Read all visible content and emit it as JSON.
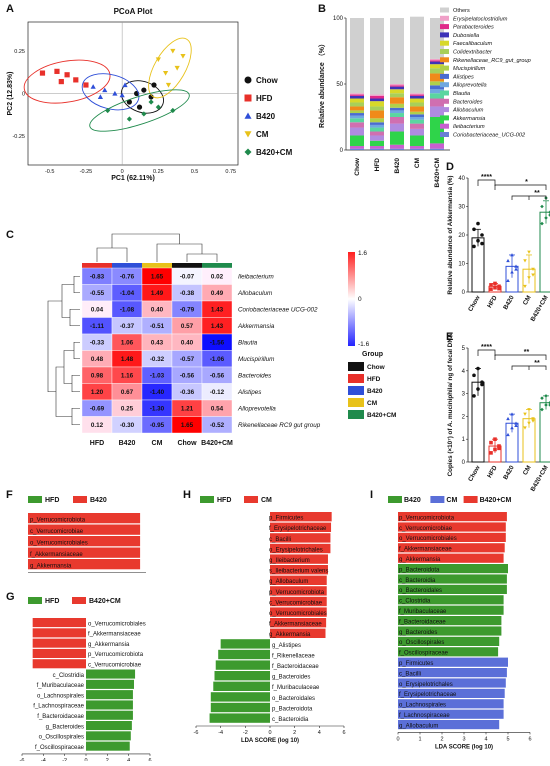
{
  "panels": {
    "A": "A",
    "B": "B",
    "C": "C",
    "D": "D",
    "E": "E",
    "F": "F",
    "G": "G",
    "H": "H",
    "I": "I"
  },
  "colors": {
    "chow": "#111111",
    "hfd": "#e8302a",
    "b420": "#2f4fd8",
    "cm": "#e8c21a",
    "b420cm": "#1f8a4c",
    "lda_green": "#3d9a2e",
    "lda_red": "#e8392e",
    "lda_blue": "#5b6fd8"
  },
  "chart_data": [
    {
      "id": "A",
      "type": "scatter",
      "title": "PCoA Plot",
      "xlabel": "PC1 (62.11%)",
      "ylabel": "PC2 (12.83%)",
      "xticks": [
        "-0.5",
        "-0.25",
        "0",
        "0.25",
        "0.5",
        "0.75"
      ],
      "yticks": [
        "0.25",
        "0",
        "-0.25"
      ],
      "xlim": [
        -0.65,
        0.8
      ],
      "ylim": [
        -0.42,
        0.42
      ],
      "legend": [
        "Chow",
        "HFD",
        "B420",
        "CM",
        "B420+CM"
      ],
      "series": [
        {
          "name": "Chow",
          "points": [
            [
              0.05,
              -0.05
            ],
            [
              0.1,
              0.0
            ],
            [
              0.15,
              0.02
            ],
            [
              0.22,
              0.05
            ],
            [
              0.12,
              -0.08
            ],
            [
              0.2,
              -0.02
            ]
          ]
        },
        {
          "name": "HFD",
          "points": [
            [
              -0.55,
              0.12
            ],
            [
              -0.45,
              0.13
            ],
            [
              -0.38,
              0.11
            ],
            [
              -0.32,
              0.08
            ],
            [
              -0.25,
              0.05
            ],
            [
              -0.42,
              0.07
            ]
          ]
        },
        {
          "name": "B420",
          "points": [
            [
              -0.2,
              0.04
            ],
            [
              -0.12,
              0.02
            ],
            [
              -0.05,
              0.0
            ],
            [
              0.02,
              0.05
            ],
            [
              -0.15,
              -0.02
            ],
            [
              0.0,
              -0.01
            ]
          ]
        },
        {
          "name": "CM",
          "points": [
            [
              0.25,
              0.2
            ],
            [
              0.3,
              0.12
            ],
            [
              0.35,
              0.25
            ],
            [
              0.38,
              0.15
            ],
            [
              0.42,
              0.22
            ],
            [
              0.32,
              0.05
            ]
          ]
        },
        {
          "name": "B420+CM",
          "points": [
            [
              -0.1,
              -0.1
            ],
            [
              0.05,
              -0.15
            ],
            [
              0.15,
              -0.12
            ],
            [
              0.25,
              -0.08
            ],
            [
              0.35,
              -0.1
            ],
            [
              0.2,
              -0.05
            ]
          ]
        }
      ]
    },
    {
      "id": "B",
      "type": "bar",
      "stacked": true,
      "ylabel": "Relative abundance （%）",
      "yticks": [
        "100",
        "50",
        "0"
      ],
      "ylim": [
        0,
        100
      ],
      "categories": [
        "Chow",
        "HFD",
        "B420",
        "CM",
        "B420+CM"
      ],
      "series": [
        {
          "name": "Coriobacteriaceae_UCG-002",
          "color": "#6a7fd6",
          "values": [
            1,
            1,
            1,
            1,
            1
          ]
        },
        {
          "name": "Ileibacterium",
          "color": "#c95fd0",
          "values": [
            2,
            2,
            3,
            2,
            4
          ]
        },
        {
          "name": "Akkermansia",
          "color": "#2fd44a",
          "values": [
            8,
            4,
            10,
            8,
            20
          ]
        },
        {
          "name": "Allobaculum",
          "color": "#b08be0",
          "values": [
            6,
            4,
            6,
            5,
            8
          ]
        },
        {
          "name": "Bacteroides",
          "color": "#d06fb0",
          "values": [
            4,
            3,
            5,
            4,
            6
          ]
        },
        {
          "name": "Blautia",
          "color": "#5ad6a0",
          "values": [
            3,
            3,
            3,
            3,
            4
          ]
        },
        {
          "name": "Alloprevotella",
          "color": "#6fa8e0",
          "values": [
            2,
            2,
            2,
            2,
            3
          ]
        },
        {
          "name": "Alistipes",
          "color": "#4a6cd0",
          "values": [
            2,
            2,
            2,
            2,
            3
          ]
        },
        {
          "name": "Mucispirillum",
          "color": "#b0d04a",
          "values": [
            2,
            3,
            3,
            2,
            3
          ]
        },
        {
          "name": "Rikenellaceae_RC9_gut_group",
          "color": "#f08a1a",
          "values": [
            3,
            6,
            5,
            4,
            6
          ]
        },
        {
          "name": "Colidextribacter",
          "color": "#a8cf5a",
          "values": [
            3,
            3,
            3,
            3,
            4
          ]
        },
        {
          "name": "Faecalibaculum",
          "color": "#d8d82a",
          "values": [
            3,
            4,
            3,
            3,
            3
          ]
        },
        {
          "name": "Dubosiella",
          "color": "#3d33b8",
          "values": [
            2,
            2,
            2,
            2,
            2
          ]
        },
        {
          "name": "Parabacteroides",
          "color": "#e02a8a",
          "values": [
            1,
            2,
            1,
            1,
            1
          ]
        },
        {
          "name": "Erysipelatoclostridium",
          "color": "#f0a0c8",
          "values": [
            1,
            1,
            1,
            1,
            1
          ]
        },
        {
          "name": "Others",
          "color": "#d0d0d0",
          "values": [
            57,
            58,
            50,
            58,
            31
          ]
        }
      ],
      "legend": [
        "Others",
        "Erysipelatoclostridium",
        "Parabacteroides",
        "Dubosiella",
        "Faecalibaculum",
        "Colidextribacter",
        "Rikenellaceae_RC9_gut_group",
        "Mucispirillum",
        "Alistipes",
        "Alloprevotella",
        "Blautia",
        "Bacteroides",
        "Allobaculum",
        "Akkermansia",
        "Ileibacterium",
        "Coriobacteriaceae_UCG-002"
      ]
    },
    {
      "id": "C",
      "type": "heatmap",
      "columns": [
        "HFD",
        "B420",
        "CM",
        "Chow",
        "B420+CM"
      ],
      "rows": [
        "Ileibacterium",
        "Allobaculum",
        "Coriobacteriaceae UCG-002",
        "Akkermansia",
        "Blautia",
        "Mucispirillum",
        "Bacteroides",
        "Alistipes",
        "Alloprevotella",
        "Rikenellaceae RC9 gut group"
      ],
      "values": [
        [
          -0.83,
          -0.76,
          1.65,
          -0.07,
          0.02
        ],
        [
          -0.55,
          -1.04,
          1.49,
          -0.38,
          0.49
        ],
        [
          0.04,
          -1.08,
          0.4,
          -0.79,
          1.43
        ],
        [
          -1.11,
          -0.37,
          -0.51,
          0.57,
          1.43
        ],
        [
          -0.33,
          1.06,
          0.43,
          0.4,
          -1.56
        ],
        [
          0.48,
          1.48,
          -0.32,
          -0.57,
          -1.06
        ],
        [
          0.98,
          1.16,
          -1.03,
          -0.56,
          -0.56
        ],
        [
          1.2,
          0.67,
          -1.4,
          -0.36,
          -0.12
        ],
        [
          -0.69,
          0.25,
          -1.3,
          1.21,
          0.54
        ],
        [
          0.12,
          -0.3,
          -0.95,
          1.65,
          -0.52
        ]
      ],
      "scale_ticks": [
        "1.6",
        "0",
        "-1.6"
      ],
      "legend_title": "Group",
      "legend": [
        "Chow",
        "HFD",
        "B420",
        "CM",
        "B420+CM"
      ]
    },
    {
      "id": "D",
      "type": "bar",
      "ylabel": "Relative abundance of Akkermansia (%)",
      "yticks": [
        "0",
        "10",
        "20",
        "30",
        "40"
      ],
      "ylim": [
        0,
        40
      ],
      "categories": [
        "Chow",
        "HFD",
        "B420",
        "CM",
        "B420+CM"
      ],
      "values": [
        19,
        2,
        9,
        8,
        28
      ],
      "errors": [
        3,
        1,
        4,
        5,
        4
      ],
      "points": [
        [
          16,
          18,
          20,
          22,
          24,
          17
        ],
        [
          1,
          1.5,
          2,
          2.5,
          3,
          1.2
        ],
        [
          4,
          7,
          9,
          11,
          13,
          8
        ],
        [
          2,
          5,
          8,
          11,
          14,
          6
        ],
        [
          24,
          26,
          28,
          30,
          33,
          27
        ]
      ],
      "sig": [
        [
          "****"
        ],
        [
          "*"
        ],
        [
          "**"
        ]
      ]
    },
    {
      "id": "E",
      "type": "bar",
      "ylabel": "Copies (×10⁷) of A. muciniphila/ ng of fecal DNA",
      "yticks": [
        "0",
        "1",
        "2",
        "3",
        "4",
        "5"
      ],
      "ylim": [
        0,
        5
      ],
      "categories": [
        "Chow",
        "HFD",
        "B420",
        "CM",
        "B420+CM"
      ],
      "values": [
        3.5,
        0.7,
        1.7,
        1.9,
        2.6
      ],
      "errors": [
        0.6,
        0.3,
        0.4,
        0.4,
        0.3
      ],
      "points": [
        [
          2.9,
          3.2,
          3.5,
          3.8,
          4.1,
          3.4
        ],
        [
          0.4,
          0.55,
          0.7,
          0.85,
          1.0,
          0.6
        ],
        [
          1.2,
          1.5,
          1.7,
          1.9,
          2.1,
          1.6
        ],
        [
          1.5,
          1.7,
          1.9,
          2.1,
          2.3,
          1.8
        ],
        [
          2.3,
          2.5,
          2.6,
          2.8,
          2.9,
          2.5
        ]
      ],
      "sig": [
        [
          "****"
        ],
        [
          "**"
        ],
        [
          "**"
        ]
      ]
    },
    {
      "id": "F",
      "type": "bar",
      "orientation": "horizontal",
      "legend": [
        "HFD",
        "B420"
      ],
      "xlabel": "LDA SCORE (log 10)",
      "xticks": [
        "0",
        "1",
        "2",
        "3",
        "4",
        "5"
      ],
      "xlim": [
        0,
        5
      ],
      "labels": [
        "p_Verrucomicrobiota",
        "c_Verrucomicrobiae",
        "o_Verrucomicrobiales",
        "f_Akkermansiaceae",
        "g_Akkermansia"
      ],
      "values": [
        4.75,
        4.75,
        4.75,
        4.75,
        4.75
      ],
      "groups": [
        "B420",
        "B420",
        "B420",
        "B420",
        "B420"
      ]
    },
    {
      "id": "G",
      "type": "bar",
      "orientation": "horizontal",
      "legend": [
        "HFD",
        "B420+CM"
      ],
      "xlabel": "LDA SCORE (log 10)",
      "xticks": [
        "-6",
        "-4",
        "-2",
        "0",
        "2",
        "4",
        "6"
      ],
      "xlim": [
        -6,
        6
      ],
      "labels": [
        "o_Verrucomicrobiales",
        "f_Akkermansiaceae",
        "g_Akkermansia",
        "p_Verrucomicrobiota",
        "c_Verrucomicrobiae",
        "c_Clostridia",
        "f_Muribaculaceae",
        "o_Lachnospirales",
        "f_Lachnospiraceae",
        "f_Bacteroidaceae",
        "g_Bacteroides",
        "o_Oscillospirales",
        "f_Oscillospiraceae"
      ],
      "values": [
        -5,
        -5,
        -5,
        -5,
        -5,
        4.6,
        4.5,
        4.4,
        4.4,
        4.4,
        4.3,
        4.2,
        4.1
      ],
      "groups": [
        "B420+CM",
        "B420+CM",
        "B420+CM",
        "B420+CM",
        "B420+CM",
        "HFD",
        "HFD",
        "HFD",
        "HFD",
        "HFD",
        "HFD",
        "HFD",
        "HFD"
      ]
    },
    {
      "id": "H",
      "type": "bar",
      "orientation": "horizontal",
      "legend": [
        "HFD",
        "CM"
      ],
      "xlabel": "LDA SCORE (log 10)",
      "xticks": [
        "-6",
        "-4",
        "-2",
        "0",
        "2",
        "4",
        "6"
      ],
      "xlim": [
        -6,
        6
      ],
      "labels": [
        "p_Firmicutes",
        "f_Erysipelotrichaceae",
        "c_Bacilli",
        "o_Erysipelotrichales",
        "g_Ileibacterium",
        "s_Ileibacterium valens",
        "g_Allobaculum",
        "p_Verrucomicrobiota",
        "c_Verrucomicrobiae",
        "o_Verrucomicrobiales",
        "f_Akkermansiaceae",
        "g_Akkermansia",
        "g_Alistipes",
        "f_Rikenellaceae",
        "f_Bacteroidaceae",
        "g_Bacteroides",
        "f_Muribaculaceae",
        "o_Bacteroidales",
        "p_Bacteroidota",
        "c_Bacteroidia"
      ],
      "values": [
        5.0,
        4.95,
        4.9,
        4.9,
        4.7,
        4.7,
        4.6,
        4.6,
        4.6,
        4.6,
        4.55,
        4.5,
        -4.0,
        -4.2,
        -4.4,
        -4.5,
        -4.6,
        -4.8,
        -4.8,
        -4.9
      ],
      "groups": [
        "CM",
        "CM",
        "CM",
        "CM",
        "CM",
        "CM",
        "CM",
        "CM",
        "CM",
        "CM",
        "CM",
        "CM",
        "HFD",
        "HFD",
        "HFD",
        "HFD",
        "HFD",
        "HFD",
        "HFD",
        "HFD"
      ]
    },
    {
      "id": "I",
      "type": "bar",
      "orientation": "horizontal",
      "legend": [
        "B420",
        "CM",
        "B420+CM"
      ],
      "xlabel": "LDA SCORE (log 10)",
      "xticks": [
        "0",
        "1",
        "2",
        "3",
        "4",
        "5",
        "6"
      ],
      "xlim": [
        0,
        6
      ],
      "labels": [
        "p_Verrucomicrobiota",
        "c_Verrucomicrobiae",
        "o_Verrucomicrobiales",
        "f_Akkermansiaceae",
        "g_Akkermansia",
        "p_Bacteroidota",
        "c_Bacteroidia",
        "o_Bacteroidales",
        "c_Clostridia",
        "f_Muribaculaceae",
        "f_Bacteroidaceae",
        "g_Bacteroides",
        "o_Oscillospirales",
        "f_Oscillospiraceae",
        "p_Firmicutes",
        "c_Bacilli",
        "o_Erysipelotrichales",
        "f_Erysipelotrichaceae",
        "o_Lachnospirales",
        "f_Lachnospiraceae",
        "g_Allobaculum"
      ],
      "values": [
        4.95,
        4.9,
        4.9,
        4.85,
        4.8,
        5.0,
        4.95,
        4.95,
        4.8,
        4.8,
        4.7,
        4.7,
        4.6,
        4.55,
        5.0,
        4.95,
        4.9,
        4.85,
        4.8,
        4.8,
        4.6
      ],
      "groups": [
        "B420+CM",
        "B420+CM",
        "B420+CM",
        "B420+CM",
        "B420+CM",
        "B420",
        "B420",
        "B420",
        "B420",
        "B420",
        "B420",
        "B420",
        "B420",
        "B420",
        "CM",
        "CM",
        "CM",
        "CM",
        "CM",
        "CM",
        "CM"
      ]
    }
  ]
}
